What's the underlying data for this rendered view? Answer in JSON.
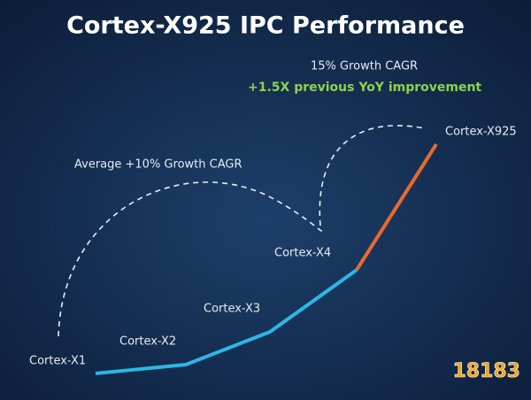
{
  "chart_data": {
    "type": "line",
    "title": "Cortex-X925 IPC Performance",
    "annotations": [
      "Average +10% Growth CAGR",
      "15% Growth CAGR",
      "+1.5X previous YoY improvement"
    ],
    "categories": [
      "Cortex-X1",
      "Cortex-X2",
      "Cortex-X3",
      "Cortex-X4",
      "Cortex-X925"
    ],
    "series": [
      {
        "color": "#2bb8e3",
        "values": [
          30,
          40,
          77,
          147,
          null
        ]
      },
      {
        "color": "#e8692e",
        "values": [
          null,
          null,
          null,
          147,
          289
        ]
      }
    ],
    "watermark": "18183"
  }
}
